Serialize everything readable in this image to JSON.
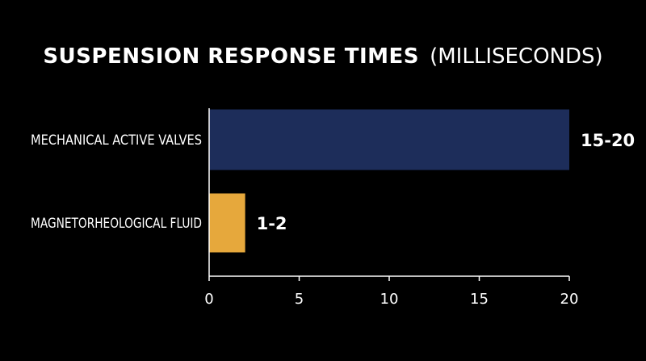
{
  "chart_data": {
    "type": "bar",
    "orientation": "horizontal",
    "title": "SUSPENSION RESPONSE TIMES",
    "subtitle": "(MILLISECONDS)",
    "categories": [
      "MECHANICAL ACTIVE VALVES",
      "MAGNETORHEOLOGICAL FLUID"
    ],
    "values": [
      20,
      2
    ],
    "data_labels": [
      "15-20",
      "1-2"
    ],
    "colors": [
      "#1d2d5a",
      "#e6a83c"
    ],
    "xlim": [
      0,
      20
    ],
    "x_ticks": [
      0,
      5,
      10,
      15,
      20
    ],
    "x_tick_labels": [
      "0",
      "5",
      "10",
      "15",
      "20"
    ],
    "xlabel": "",
    "ylabel": "",
    "grid": false,
    "legend": "none",
    "background": "#000000",
    "text_color": "#ffffff"
  }
}
